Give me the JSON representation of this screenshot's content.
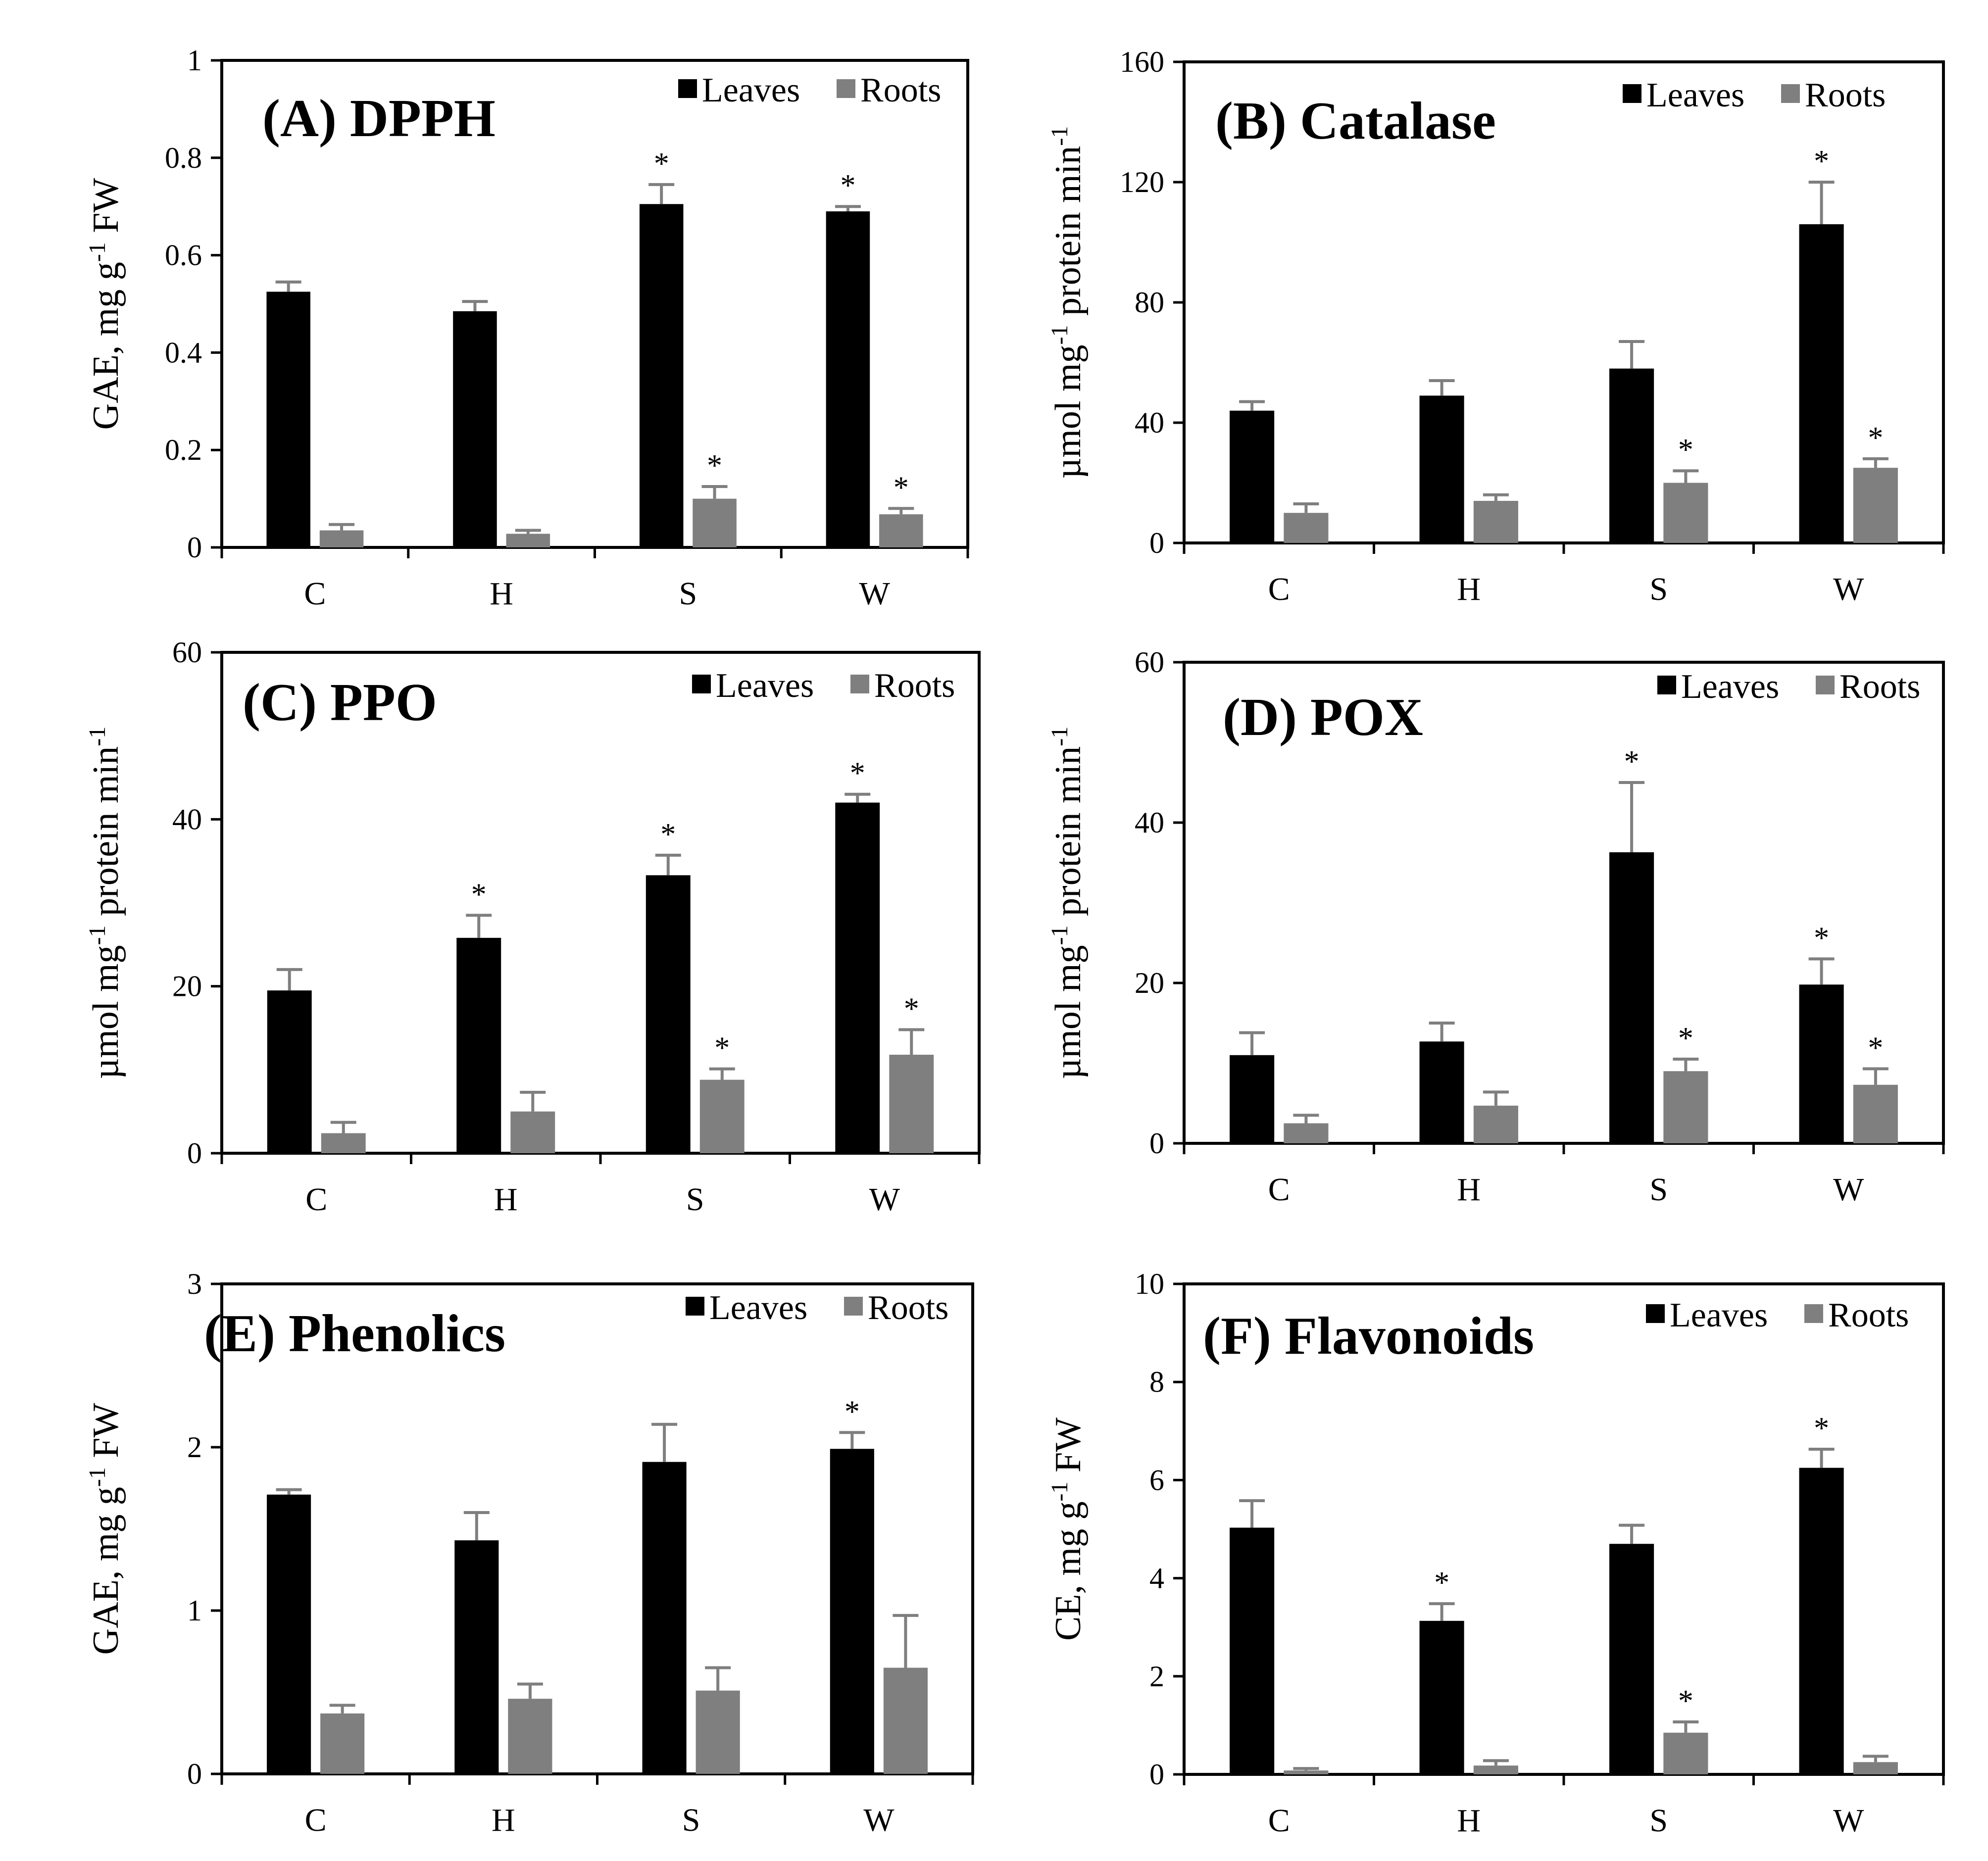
{
  "colors": {
    "leaves": "#000000",
    "roots": "#7f7f7f",
    "error": "#7f7f7f",
    "axis": "#000000"
  },
  "chart_data": [
    {
      "type": "bar",
      "title": "(A) DPPH",
      "xlabel": "",
      "ylabel": "GAE, mg g-1 FW",
      "ylabel_parts": [
        "GAE, mg g",
        "-1",
        " FW"
      ],
      "categories": [
        "C",
        "H",
        "S",
        "W"
      ],
      "ylim": [
        0,
        1
      ],
      "yticks": [
        0,
        0.2,
        0.4,
        0.6,
        0.8,
        1
      ],
      "ytick_labels": [
        "0",
        "0.2",
        "0.4",
        "0.6",
        "0.8",
        "1"
      ],
      "legend": [
        "Leaves",
        "Roots"
      ],
      "series": [
        {
          "name": "Leaves",
          "values": [
            0.525,
            0.485,
            0.705,
            0.69
          ],
          "errors": [
            0.02,
            0.02,
            0.04,
            0.01
          ],
          "significant": [
            false,
            false,
            true,
            true
          ]
        },
        {
          "name": "Roots",
          "values": [
            0.035,
            0.028,
            0.1,
            0.068
          ],
          "errors": [
            0.012,
            0.007,
            0.025,
            0.012
          ],
          "significant": [
            false,
            false,
            true,
            true
          ]
        }
      ]
    },
    {
      "type": "bar",
      "title": "(B) Catalase",
      "xlabel": "",
      "ylabel": "µmol mg-1 protein min-1",
      "ylabel_parts": [
        "µmol mg",
        "-1",
        " protein min",
        "-1"
      ],
      "categories": [
        "C",
        "H",
        "S",
        "W"
      ],
      "ylim": [
        0,
        160
      ],
      "yticks": [
        0,
        40,
        80,
        120,
        160
      ],
      "ytick_labels": [
        "0",
        "40",
        "80",
        "120",
        "160"
      ],
      "legend": [
        "Leaves",
        "Roots"
      ],
      "series": [
        {
          "name": "Leaves",
          "values": [
            44,
            49,
            58,
            106
          ],
          "errors": [
            3,
            5,
            9,
            14
          ],
          "significant": [
            false,
            false,
            false,
            true
          ]
        },
        {
          "name": "Roots",
          "values": [
            10,
            14,
            20,
            25
          ],
          "errors": [
            3,
            2,
            4,
            3
          ],
          "significant": [
            false,
            false,
            true,
            true
          ]
        }
      ]
    },
    {
      "type": "bar",
      "title": "(C) PPO",
      "xlabel": "",
      "ylabel": "µmol mg-1 protein min-1",
      "ylabel_parts": [
        "µmol mg",
        "-1",
        " protein min",
        "-1"
      ],
      "categories": [
        "C",
        "H",
        "S",
        "W"
      ],
      "ylim": [
        0,
        60
      ],
      "yticks": [
        0,
        20,
        40,
        60
      ],
      "ytick_labels": [
        "0",
        "20",
        "40",
        "60"
      ],
      "legend": [
        "Leaves",
        "Roots"
      ],
      "series": [
        {
          "name": "Leaves",
          "values": [
            19.5,
            25.8,
            33.3,
            42
          ],
          "errors": [
            2.5,
            2.7,
            2.4,
            1
          ],
          "significant": [
            false,
            true,
            true,
            true
          ]
        },
        {
          "name": "Roots",
          "values": [
            2.4,
            5,
            8.8,
            11.8
          ],
          "errors": [
            1.3,
            2.3,
            1.3,
            3
          ],
          "significant": [
            false,
            false,
            true,
            true
          ]
        }
      ]
    },
    {
      "type": "bar",
      "title": "(D) POX",
      "xlabel": "",
      "ylabel": "µmol mg-1 protein min-1",
      "ylabel_parts": [
        "µmol mg",
        "-1",
        " protein min",
        "-1"
      ],
      "categories": [
        "C",
        "H",
        "S",
        "W"
      ],
      "ylim": [
        0,
        60
      ],
      "yticks": [
        0,
        20,
        40,
        60
      ],
      "ytick_labels": [
        "0",
        "20",
        "40",
        "60"
      ],
      "legend": [
        "Leaves",
        "Roots"
      ],
      "series": [
        {
          "name": "Leaves",
          "values": [
            11,
            12.7,
            36.3,
            19.8
          ],
          "errors": [
            2.8,
            2.3,
            8.7,
            3.2
          ],
          "significant": [
            false,
            false,
            true,
            true
          ]
        },
        {
          "name": "Roots",
          "values": [
            2.5,
            4.7,
            9,
            7.3
          ],
          "errors": [
            1,
            1.7,
            1.5,
            2
          ],
          "significant": [
            false,
            false,
            true,
            true
          ]
        }
      ]
    },
    {
      "type": "bar",
      "title": "(E) Phenolics",
      "xlabel": "",
      "ylabel": "GAE, mg g-1 FW",
      "ylabel_parts": [
        "GAE, mg g",
        "-1",
        " FW"
      ],
      "categories": [
        "C",
        "H",
        "S",
        "W"
      ],
      "ylim": [
        0,
        3
      ],
      "yticks": [
        0,
        1,
        2,
        3
      ],
      "ytick_labels": [
        "0",
        "1",
        "2",
        "3"
      ],
      "legend": [
        "Leaves",
        "Roots"
      ],
      "series": [
        {
          "name": "Leaves",
          "values": [
            1.71,
            1.43,
            1.91,
            1.99
          ],
          "errors": [
            0.03,
            0.17,
            0.23,
            0.1
          ],
          "significant": [
            false,
            false,
            false,
            true
          ]
        },
        {
          "name": "Roots",
          "values": [
            0.37,
            0.46,
            0.51,
            0.65
          ],
          "errors": [
            0.05,
            0.09,
            0.14,
            0.32
          ],
          "significant": [
            false,
            false,
            false,
            false
          ]
        }
      ]
    },
    {
      "type": "bar",
      "title": "(F) Flavonoids",
      "xlabel": "",
      "ylabel": "CE, mg g-1 FW",
      "ylabel_parts": [
        "CE, mg g",
        "-1",
        " FW"
      ],
      "categories": [
        "C",
        "H",
        "S",
        "W"
      ],
      "ylim": [
        0,
        10
      ],
      "yticks": [
        0,
        2,
        4,
        6,
        8,
        10
      ],
      "ytick_labels": [
        "0",
        "2",
        "4",
        "6",
        "8",
        "10"
      ],
      "legend": [
        "Leaves",
        "Roots"
      ],
      "series": [
        {
          "name": "Leaves",
          "values": [
            5.03,
            3.13,
            4.7,
            6.25
          ],
          "errors": [
            0.55,
            0.35,
            0.38,
            0.38
          ],
          "significant": [
            false,
            true,
            false,
            true
          ]
        },
        {
          "name": "Roots",
          "values": [
            0.08,
            0.18,
            0.85,
            0.25
          ],
          "errors": [
            0.04,
            0.1,
            0.22,
            0.12
          ],
          "significant": [
            false,
            false,
            true,
            false
          ]
        }
      ]
    }
  ]
}
